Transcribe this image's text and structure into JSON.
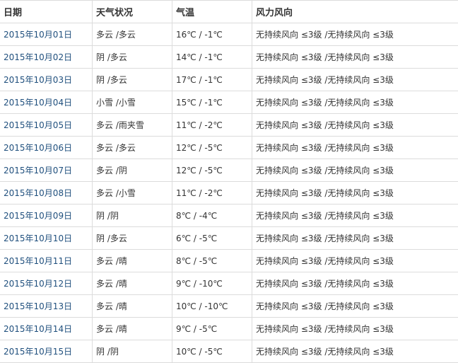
{
  "colors": {
    "date_link": "#1f4f7d",
    "border": "#dcdcdc",
    "text": "#333333"
  },
  "table": {
    "headers": [
      "日期",
      "天气状况",
      "气温",
      "风力风向"
    ],
    "rows": [
      {
        "date": "2015年10月01日",
        "weather": "多云 /多云",
        "temp": "16℃ / -1℃",
        "wind": "无持续风向 ≤3级 /无持续风向 ≤3级"
      },
      {
        "date": "2015年10月02日",
        "weather": "阴 /多云",
        "temp": "14℃ / -1℃",
        "wind": "无持续风向 ≤3级 /无持续风向 ≤3级"
      },
      {
        "date": "2015年10月03日",
        "weather": "阴 /多云",
        "temp": "17℃ / -1℃",
        "wind": "无持续风向 ≤3级 /无持续风向 ≤3级"
      },
      {
        "date": "2015年10月04日",
        "weather": "小雪 /小雪",
        "temp": "15℃ / -1℃",
        "wind": "无持续风向 ≤3级 /无持续风向 ≤3级"
      },
      {
        "date": "2015年10月05日",
        "weather": "多云 /雨夹雪",
        "temp": "11℃ / -2℃",
        "wind": "无持续风向 ≤3级 /无持续风向 ≤3级"
      },
      {
        "date": "2015年10月06日",
        "weather": "多云 /多云",
        "temp": "12℃ / -5℃",
        "wind": "无持续风向 ≤3级 /无持续风向 ≤3级"
      },
      {
        "date": "2015年10月07日",
        "weather": "多云 /阴",
        "temp": "12℃ / -5℃",
        "wind": "无持续风向 ≤3级 /无持续风向 ≤3级"
      },
      {
        "date": "2015年10月08日",
        "weather": "多云 /小雪",
        "temp": "11℃ / -2℃",
        "wind": "无持续风向 ≤3级 /无持续风向 ≤3级"
      },
      {
        "date": "2015年10月09日",
        "weather": "阴 /阴",
        "temp": "8℃ / -4℃",
        "wind": "无持续风向 ≤3级 /无持续风向 ≤3级"
      },
      {
        "date": "2015年10月10日",
        "weather": "阴 /多云",
        "temp": "6℃ / -5℃",
        "wind": "无持续风向 ≤3级 /无持续风向 ≤3级"
      },
      {
        "date": "2015年10月11日",
        "weather": "多云 /晴",
        "temp": "8℃ / -5℃",
        "wind": "无持续风向 ≤3级 /无持续风向 ≤3级"
      },
      {
        "date": "2015年10月12日",
        "weather": "多云 /晴",
        "temp": "9℃ / -10℃",
        "wind": "无持续风向 ≤3级 /无持续风向 ≤3级"
      },
      {
        "date": "2015年10月13日",
        "weather": "多云 /晴",
        "temp": "10℃ / -10℃",
        "wind": "无持续风向 ≤3级 /无持续风向 ≤3级"
      },
      {
        "date": "2015年10月14日",
        "weather": "多云 /晴",
        "temp": "9℃ / -5℃",
        "wind": "无持续风向 ≤3级 /无持续风向 ≤3级"
      },
      {
        "date": "2015年10月15日",
        "weather": "阴 /阴",
        "temp": "10℃ / -5℃",
        "wind": "无持续风向 ≤3级 /无持续风向 ≤3级"
      }
    ]
  }
}
